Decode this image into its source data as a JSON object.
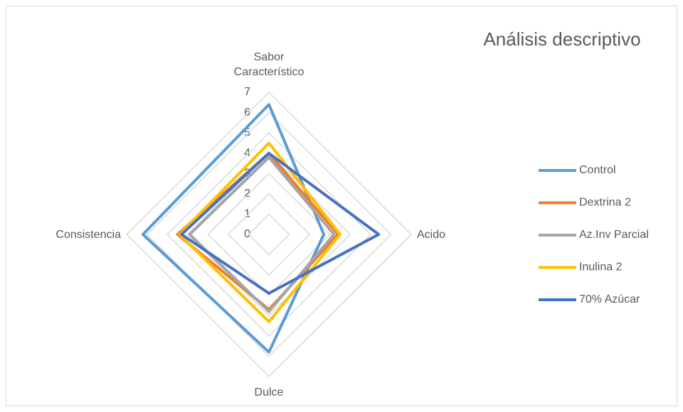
{
  "chart_data": {
    "type": "radar",
    "title": "Análisis descriptivo",
    "categories": [
      "Sabor Característico",
      "Acido",
      "Dulce",
      "Consistencia"
    ],
    "series": [
      {
        "name": "Control",
        "color": "#5b9bd5",
        "values": [
          6.4,
          2.7,
          5.8,
          6.2
        ]
      },
      {
        "name": "Dextrina 2",
        "color": "#ed7d31",
        "values": [
          4.0,
          3.4,
          3.7,
          4.5
        ]
      },
      {
        "name": "Az.Inv Parcial",
        "color": "#a5a5a5",
        "values": [
          3.8,
          3.2,
          3.8,
          3.9
        ]
      },
      {
        "name": "Inulina 2",
        "color": "#ffc000",
        "values": [
          4.5,
          3.5,
          4.3,
          4.4
        ]
      },
      {
        "name": "70% Azúcar",
        "color": "#4472c4",
        "values": [
          4.0,
          5.4,
          2.9,
          4.3
        ]
      }
    ],
    "ylim": [
      0,
      7
    ],
    "yticks": [
      0,
      1,
      2,
      3,
      4,
      5,
      6,
      7
    ],
    "grid": true,
    "legend": "right"
  }
}
